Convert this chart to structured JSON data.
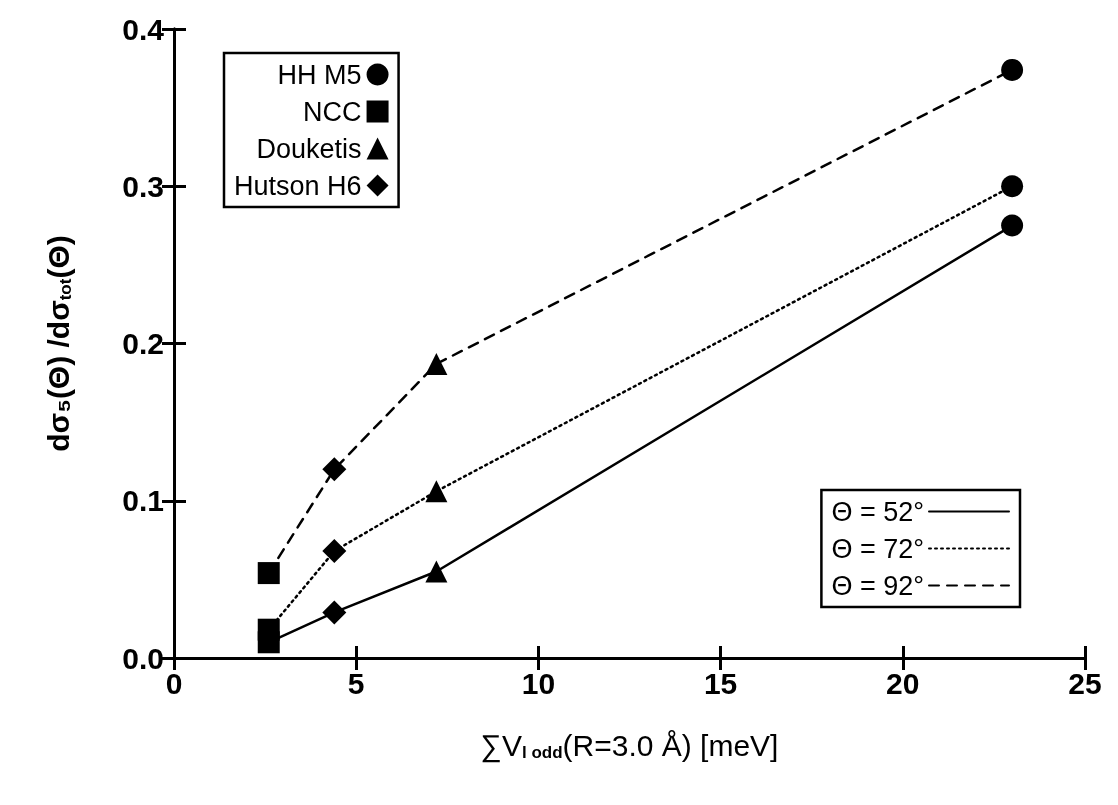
{
  "chart_data": {
    "type": "line",
    "xlabel": "∑V$_{l odd}$(R=3.0 Å) [meV]",
    "ylabel": "dσ₅(Θ) /dσ$_{tot}$(Θ)",
    "xlim": [
      0,
      25
    ],
    "xticks": [
      0,
      5,
      10,
      15,
      20,
      25
    ],
    "ylim": [
      0,
      0.4
    ],
    "yticks": [
      {
        "value": 0,
        "label": "0.0"
      },
      0.1,
      0.2,
      0.3,
      0.4
    ],
    "grid": false,
    "legend": [
      "top left",
      "bottom right"
    ],
    "series": [
      {
        "name": "Θ = 52°",
        "color": "#000000",
        "line_style": "solid",
        "marker": "none",
        "x": [
          2.6,
          4.4,
          7.2,
          23.0
        ],
        "values": [
          0.01,
          0.029,
          0.055,
          0.275
        ]
      },
      {
        "name": "Θ = 72°",
        "color": "#000000",
        "line_style": "dotted",
        "marker": "none",
        "x": [
          2.6,
          4.4,
          7.2,
          23.0
        ],
        "values": [
          0.018,
          0.068,
          0.106,
          0.3
        ]
      },
      {
        "name": "Θ = 92°",
        "color": "#000000",
        "line_style": "dashed",
        "marker": "none",
        "x": [
          2.6,
          4.4,
          7.2,
          23.0
        ],
        "values": [
          0.054,
          0.12,
          0.187,
          0.374
        ]
      },
      {
        "name": "HH M5",
        "type": "scatter",
        "color": "#000000",
        "marker": "circle",
        "x": [
          23.0,
          23.0,
          23.0
        ],
        "values": [
          0.275,
          0.3,
          0.374
        ]
      },
      {
        "name": "NCC",
        "type": "scatter",
        "color": "#000000",
        "marker": "square",
        "x": [
          2.6,
          2.6,
          2.6
        ],
        "values": [
          0.01,
          0.018,
          0.054
        ]
      },
      {
        "name": "Douketis",
        "type": "scatter",
        "color": "#000000",
        "marker": "triangle",
        "x": [
          7.2,
          7.2,
          7.2
        ],
        "values": [
          0.055,
          0.106,
          0.187
        ]
      },
      {
        "name": "Hutson H6",
        "type": "scatter",
        "color": "#000000",
        "marker": "diamond",
        "x": [
          4.4,
          4.4,
          4.4
        ],
        "values": [
          0.029,
          0.068,
          0.12
        ]
      }
    ]
  }
}
